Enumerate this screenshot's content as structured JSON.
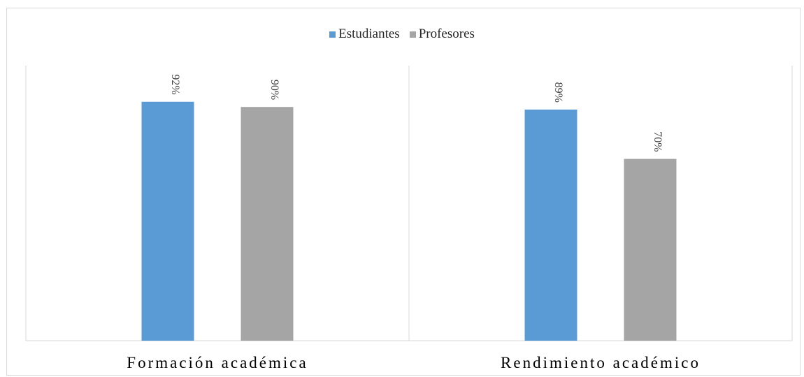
{
  "chart_data": {
    "type": "bar",
    "title": "",
    "xlabel": "",
    "ylabel": "",
    "categories": [
      "Formación académica",
      "Rendimiento académico"
    ],
    "series": [
      {
        "name": "Estudiantes",
        "color": "#5b9bd5",
        "values": [
          92,
          89
        ],
        "labels": [
          "92%",
          "89%"
        ]
      },
      {
        "name": "Profesores",
        "color": "#a5a5a5",
        "values": [
          90,
          70
        ],
        "labels": [
          "90%",
          "70%"
        ]
      }
    ],
    "ylim": [
      0,
      100
    ],
    "grid": false,
    "legend": "top-center"
  }
}
